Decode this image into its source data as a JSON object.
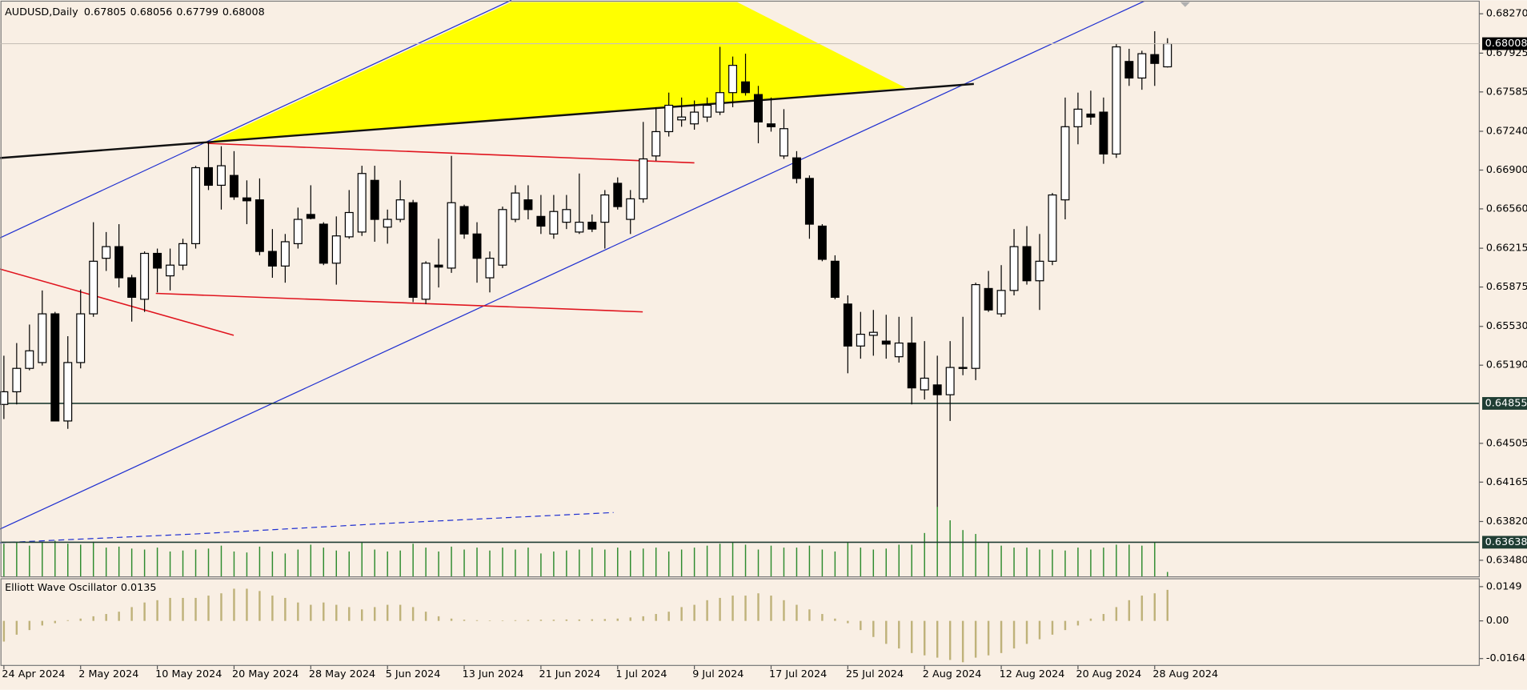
{
  "chart_data": {
    "type": "candlestick",
    "title": "AUDUSD,Daily",
    "categories": [
      "24 Apr 2024",
      null,
      null,
      null,
      null,
      null,
      "2 May 2024",
      null,
      null,
      null,
      null,
      null,
      "10 May 2024",
      null,
      null,
      null,
      null,
      null,
      "20 May 2024",
      null,
      null,
      null,
      null,
      null,
      "28 May 2024",
      null,
      null,
      null,
      null,
      null,
      "5 Jun 2024",
      null,
      null,
      null,
      null,
      null,
      "13 Jun 2024",
      null,
      null,
      null,
      null,
      null,
      "21 Jun 2024",
      null,
      null,
      null,
      null,
      null,
      "1 Jul 2024",
      null,
      null,
      null,
      null,
      null,
      "9 Jul 2024",
      null,
      null,
      null,
      null,
      null,
      "17 Jul 2024",
      null,
      null,
      null,
      null,
      null,
      "25 Jul 2024",
      null,
      null,
      null,
      null,
      null,
      "2 Aug 2024",
      null,
      null,
      null,
      null,
      null,
      "12 Aug 2024",
      null,
      null,
      null,
      null,
      null,
      "20 Aug 2024",
      null,
      null,
      null,
      null,
      null,
      "28 Aug 2024",
      null
    ],
    "open": [
      0.64846,
      0.64957,
      0.65162,
      0.65213,
      0.6564,
      0.64701,
      0.65213,
      0.6564,
      0.66127,
      0.66229,
      0.65956,
      0.65768,
      0.6617,
      0.65973,
      0.66067,
      0.66255,
      0.66921,
      0.66767,
      0.66853,
      0.66656,
      0.66639,
      0.66187,
      0.66059,
      0.66255,
      0.66511,
      0.66426,
      0.66084,
      0.66315,
      0.66357,
      0.6681,
      0.664,
      0.66468,
      0.66614,
      0.65768,
      0.66067,
      0.66041,
      0.6658,
      0.6634,
      0.65956,
      0.66067,
      0.66468,
      0.66639,
      0.66494,
      0.6634,
      0.66443,
      0.66357,
      0.66443,
      0.66443,
      0.66784,
      0.66468,
      0.66648,
      0.67024,
      0.67237,
      0.6734,
      0.67305,
      0.67365,
      0.67408,
      0.67579,
      0.67673,
      0.67562,
      0.67305,
      0.67024,
      0.67007,
      0.66827,
      0.66409,
      0.66101,
      0.65726,
      0.65358,
      0.65452,
      0.65401,
      0.65264,
      0.65384,
      0.64974,
      0.65017,
      0.64931,
      0.6517,
      0.65162,
      0.65862,
      0.6564,
      0.65845,
      0.66229,
      0.6593,
      0.66101,
      0.66639,
      0.6728,
      0.67391,
      0.67408,
      0.67041,
      0.67852,
      0.67707,
      0.67912,
      0.67805
    ],
    "high": [
      0.65273,
      0.65384,
      0.65546,
      0.65845,
      0.65657,
      0.65444,
      0.65853,
      0.66443,
      0.66357,
      0.66426,
      0.65982,
      0.66187,
      0.66212,
      0.66212,
      0.66298,
      0.66938,
      0.67152,
      0.67109,
      0.67066,
      0.6681,
      0.66827,
      0.66383,
      0.6634,
      0.66571,
      0.66767,
      0.66443,
      0.66494,
      0.66725,
      0.66938,
      0.66938,
      0.66554,
      0.6681,
      0.66639,
      0.66101,
      0.66298,
      0.67024,
      0.66597,
      0.66443,
      0.66187,
      0.6658,
      0.66767,
      0.66767,
      0.66682,
      0.66682,
      0.66682,
      0.6687,
      0.66511,
      0.66725,
      0.66836,
      0.66725,
      0.67322,
      0.67451,
      0.67579,
      0.67536,
      0.6751,
      0.67536,
      0.6798,
      0.67895,
      0.6792,
      0.67638,
      0.67536,
      0.67434,
      0.67066,
      0.66853,
      0.66426,
      0.66153,
      0.65802,
      0.65657,
      0.65674,
      0.65632,
      0.65614,
      0.65614,
      0.65401,
      0.65273,
      0.65401,
      0.65614,
      0.65913,
      0.66016,
      0.66067,
      0.66383,
      0.66409,
      0.6634,
      0.66699,
      0.67536,
      0.67579,
      0.67596,
      0.67536,
      0.68006,
      0.67963,
      0.67946,
      0.68117,
      0.68056
    ],
    "low": [
      0.64718,
      0.64846,
      0.65145,
      0.65187,
      0.64701,
      0.64632,
      0.65162,
      0.65614,
      0.66016,
      0.65871,
      0.65572,
      0.65657,
      0.65828,
      0.65845,
      0.66024,
      0.66212,
      0.66725,
      0.66554,
      0.66639,
      0.66426,
      0.66153,
      0.65956,
      0.65913,
      0.66212,
      0.66468,
      0.66067,
      0.65896,
      0.66298,
      0.66323,
      0.66272,
      0.66255,
      0.66443,
      0.65743,
      0.65726,
      0.65871,
      0.65999,
      0.66298,
      0.65913,
      0.65828,
      0.66041,
      0.66443,
      0.66468,
      0.6634,
      0.66298,
      0.66383,
      0.6634,
      0.66357,
      0.66212,
      0.66554,
      0.6634,
      0.66614,
      0.66981,
      0.67194,
      0.6728,
      0.67254,
      0.67322,
      0.67382,
      0.67451,
      0.67553,
      0.67135,
      0.67237,
      0.66998,
      0.66784,
      0.66298,
      0.66101,
      0.65768,
      0.65119,
      0.65247,
      0.65273,
      0.65247,
      0.65213,
      0.64846,
      0.64889,
      0.63949,
      0.64701,
      0.65102,
      0.65059,
      0.65657,
      0.65614,
      0.65802,
      0.65896,
      0.65674,
      0.66067,
      0.66468,
      0.67126,
      0.67297,
      0.66955,
      0.67007,
      0.67638,
      0.67604,
      0.67638,
      0.67799
    ],
    "close": [
      0.64957,
      0.65162,
      0.65316,
      0.6564,
      0.64701,
      0.65213,
      0.6564,
      0.66101,
      0.66229,
      0.65956,
      0.65785,
      0.6617,
      0.66041,
      0.66067,
      0.66255,
      0.66921,
      0.66767,
      0.66938,
      0.66665,
      0.66631,
      0.66187,
      0.66059,
      0.66272,
      0.66468,
      0.66477,
      0.66084,
      0.66323,
      0.66528,
      0.6687,
      0.66468,
      0.66468,
      0.66639,
      0.65785,
      0.66084,
      0.6605,
      0.66614,
      0.6634,
      0.66127,
      0.66127,
      0.66554,
      0.66699,
      0.66554,
      0.66409,
      0.66537,
      0.66554,
      0.66443,
      0.66383,
      0.66682,
      0.6658,
      0.66648,
      0.66998,
      0.67237,
      0.67468,
      0.67365,
      0.67408,
      0.67468,
      0.67579,
      0.67818,
      0.67579,
      0.67322,
      0.6728,
      0.67263,
      0.66827,
      0.66426,
      0.66118,
      0.65785,
      0.65358,
      0.65461,
      0.65478,
      0.65375,
      0.65384,
      0.64991,
      0.65076,
      0.64931,
      0.6517,
      0.65162,
      0.65896,
      0.65674,
      0.65845,
      0.66229,
      0.6593,
      0.66101,
      0.66682,
      0.6728,
      0.67434,
      0.67365,
      0.67041,
      0.6798,
      0.67707,
      0.6792,
      0.67835,
      0.68008
    ],
    "up_color": "#ffffff",
    "down_color": "#000000",
    "ylim": [
      0.63335,
      0.68372
    ],
    "yticks": [
      {
        "value": 0.6827,
        "label": "0.68270"
      },
      0.67925,
      0.67585,
      {
        "value": 0.6724,
        "label": "0.67240"
      },
      {
        "value": 0.669,
        "label": "0.66900"
      },
      {
        "value": 0.6656,
        "label": "0.66560"
      },
      0.66215,
      0.65875,
      {
        "value": 0.6553,
        "label": "0.65530"
      },
      {
        "value": 0.6519,
        "label": "0.65190"
      },
      0.64505,
      0.64165,
      {
        "value": 0.6382,
        "label": "0.63820"
      },
      {
        "value": 0.6348,
        "label": "0.63480"
      }
    ],
    "hlines": [
      0.64855,
      0.63638
    ],
    "volume": {
      "color": "#2e8b2e",
      "values": [
        34,
        36,
        32,
        35,
        37,
        34,
        33,
        36,
        30,
        31,
        29,
        28,
        30,
        26,
        27,
        28,
        29,
        32,
        26,
        25,
        31,
        26,
        24,
        28,
        33,
        30,
        27,
        26,
        35,
        28,
        26,
        27,
        34,
        30,
        26,
        31,
        28,
        30,
        27,
        30,
        28,
        30,
        24,
        26,
        27,
        28,
        30,
        28,
        30,
        27,
        29,
        30,
        26,
        28,
        30,
        32,
        34,
        35,
        33,
        28,
        32,
        30,
        30,
        32,
        28,
        26,
        35,
        30,
        28,
        29,
        33,
        33,
        45,
        72,
        58,
        48,
        44,
        35,
        32,
        30,
        30,
        28,
        28,
        27,
        30,
        28,
        30,
        33,
        33,
        32,
        35,
        5
      ]
    },
    "oscillator": {
      "title": "Elliott Wave Oscillator",
      "color": "#bfb27a",
      "values": [
        -0.009,
        -0.006,
        -0.004,
        -0.002,
        -0.001,
        0.0003,
        0.001,
        0.002,
        0.003,
        0.004,
        0.006,
        0.008,
        0.009,
        0.01,
        0.01,
        0.01,
        0.011,
        0.012,
        0.014,
        0.014,
        0.013,
        0.011,
        0.01,
        0.008,
        0.007,
        0.008,
        0.007,
        0.006,
        0.005,
        0.006,
        0.007,
        0.007,
        0.006,
        0.004,
        0.002,
        0.001,
        0.0005,
        0.0003,
        0.0002,
        0.0002,
        0.0003,
        0.0004,
        0.0005,
        0.0005,
        0.0006,
        0.0006,
        0.0007,
        0.0008,
        0.001,
        0.0015,
        0.002,
        0.003,
        0.004,
        0.006,
        0.007,
        0.009,
        0.01,
        0.011,
        0.011,
        0.012,
        0.011,
        0.009,
        0.007,
        0.005,
        0.003,
        0.001,
        -0.001,
        -0.004,
        -0.007,
        -0.01,
        -0.012,
        -0.014,
        -0.015,
        -0.016,
        -0.017,
        -0.018,
        -0.016,
        -0.015,
        -0.014,
        -0.012,
        -0.01,
        -0.008,
        -0.006,
        -0.004,
        -0.002,
        0.001,
        0.003,
        0.006,
        0.009,
        0.011,
        0.012,
        0.0135
      ],
      "ylim": [
        -0.0194,
        0.0179
      ],
      "yticks": [
        0.0149,
        {
          "value": 0,
          "label": "0.00"
        },
        -0.0164
      ]
    }
  }
}
